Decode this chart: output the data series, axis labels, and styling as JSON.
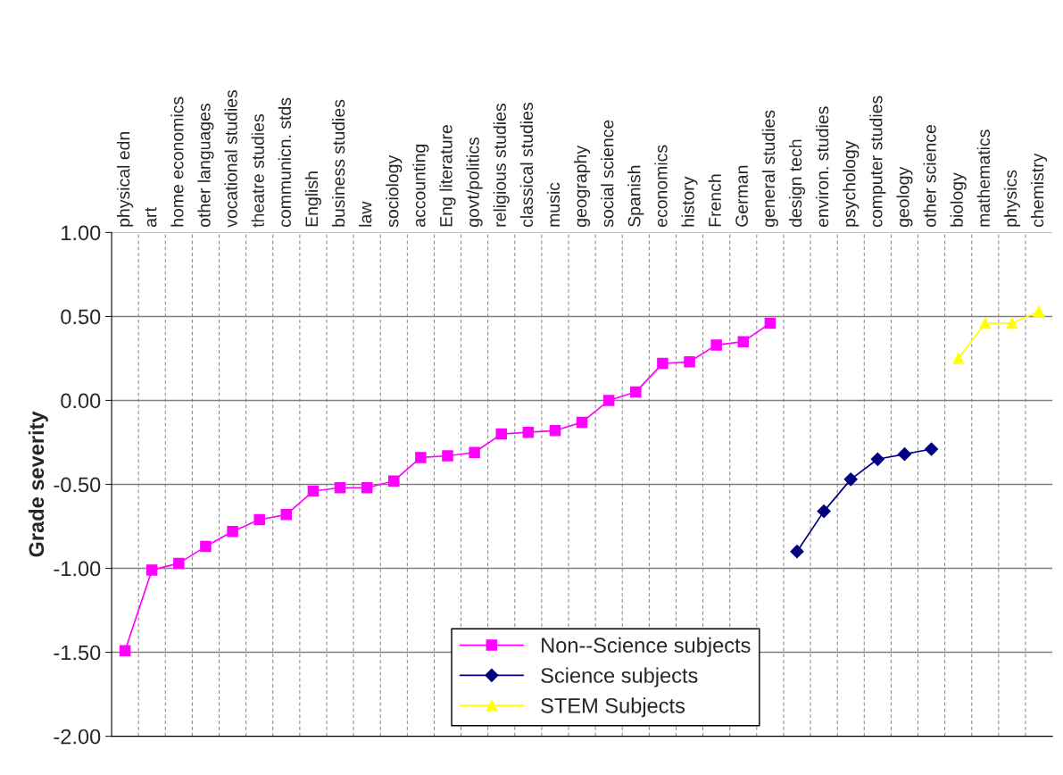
{
  "chart_data": {
    "type": "line",
    "ylabel": "Grade severity",
    "categories": [
      "physical edn",
      "art",
      "home economics",
      "other languages",
      "vocational studies",
      "theatre studies",
      "communicn. stds",
      "English",
      "business studies",
      "law",
      "sociology",
      "accounting",
      "Eng literature",
      "govt/politics",
      "religious studies",
      "classical studies",
      "music",
      "geography",
      "social science",
      "Spanish",
      "economics",
      "history",
      "French",
      "German",
      "general studies",
      "design tech",
      "environ. studies",
      "psychology",
      "computer studies",
      "geology",
      "other science",
      "biology",
      "mathematics",
      "physics",
      "chemistry"
    ],
    "series": [
      {
        "name": "Non--Science subjects",
        "color": "#ff00ff",
        "marker": "square",
        "values": [
          -1.49,
          -1.01,
          -0.97,
          -0.87,
          -0.78,
          -0.71,
          -0.68,
          -0.54,
          -0.52,
          -0.52,
          -0.48,
          -0.34,
          -0.33,
          -0.31,
          -0.2,
          -0.19,
          -0.18,
          -0.13,
          0.0,
          0.05,
          0.22,
          0.23,
          0.33,
          0.35,
          0.46,
          null,
          null,
          null,
          null,
          null,
          null,
          null,
          null,
          null,
          null
        ]
      },
      {
        "name": "Science subjects",
        "color": "#000080",
        "marker": "diamond",
        "values": [
          null,
          null,
          null,
          null,
          null,
          null,
          null,
          null,
          null,
          null,
          null,
          null,
          null,
          null,
          null,
          null,
          null,
          null,
          null,
          null,
          null,
          null,
          null,
          null,
          null,
          -0.9,
          -0.66,
          -0.47,
          -0.35,
          -0.32,
          -0.29,
          null,
          null,
          null,
          null
        ]
      },
      {
        "name": "STEM Subjects",
        "color": "#ffff00",
        "marker": "triangle",
        "values": [
          null,
          null,
          null,
          null,
          null,
          null,
          null,
          null,
          null,
          null,
          null,
          null,
          null,
          null,
          null,
          null,
          null,
          null,
          null,
          null,
          null,
          null,
          null,
          null,
          null,
          null,
          null,
          null,
          null,
          null,
          null,
          0.25,
          0.46,
          0.46,
          0.53
        ]
      }
    ],
    "ylim": [
      -2.0,
      1.0
    ],
    "yticks": [
      {
        "value": -2.0,
        "label": "-2.00"
      },
      {
        "value": -1.5,
        "label": "-1.50"
      },
      {
        "value": -1.0,
        "label": "-1.00"
      },
      {
        "value": -0.5,
        "label": "-0.50"
      },
      {
        "value": 0.0,
        "label": "0.00"
      },
      {
        "value": 0.5,
        "label": "0.50"
      },
      {
        "value": 1.0,
        "label": "1.00"
      }
    ],
    "grid": true,
    "legend": "bottom",
    "line_style": "solid"
  }
}
